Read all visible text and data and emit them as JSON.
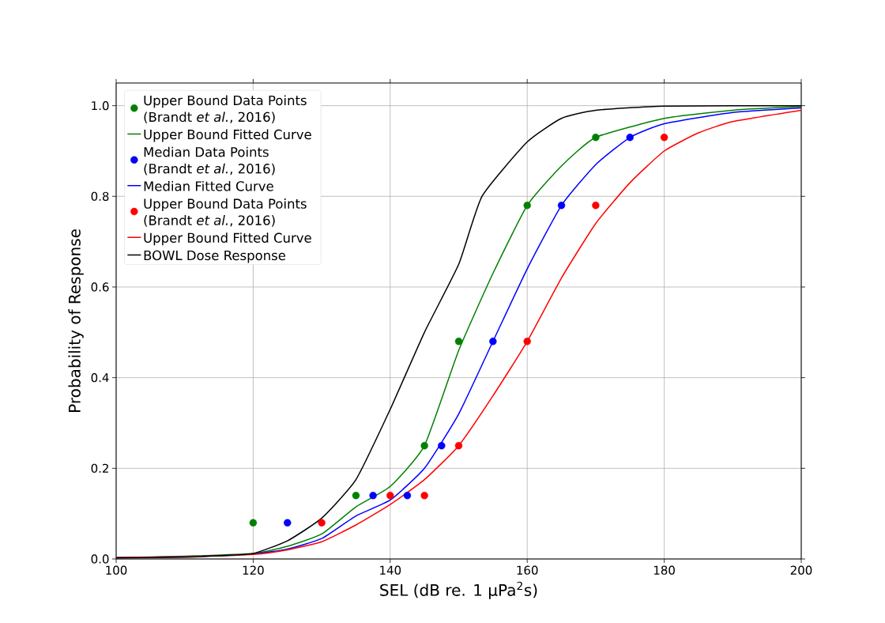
{
  "chart_data": {
    "type": "line",
    "xlabel": "SEL (dB re. 1 μPa$^{2}$s)",
    "ylabel": "Probability of Response",
    "xlim": [
      100,
      200
    ],
    "ylim": [
      0,
      1.05
    ],
    "xticks": [
      100,
      120,
      140,
      160,
      180,
      200
    ],
    "yticks": [
      {
        "value": 0,
        "label": "0.0"
      },
      {
        "value": 0.2,
        "label": "0.2"
      },
      {
        "value": 0.4,
        "label": "0.4"
      },
      {
        "value": 0.6,
        "label": "0.6"
      },
      {
        "value": 0.8,
        "label": "0.8"
      },
      {
        "value": 1.0,
        "label": "1.0"
      }
    ],
    "grid": true,
    "legend": "top left",
    "series": [
      {
        "type": "scatter",
        "marker": "circle",
        "name": "Upper Bound Data Points (Brandt *et al.*, 2016)",
        "color": "#008000",
        "x": [
          120,
          135,
          145,
          150,
          160,
          170
        ],
        "values": [
          0.08,
          0.14,
          0.25,
          0.48,
          0.78,
          0.93
        ]
      },
      {
        "type": "line",
        "name": "Upper Bound Fitted Curve",
        "color": "#008000",
        "x": [
          100,
          110,
          120,
          125,
          130,
          135,
          140,
          145,
          150,
          155,
          160,
          165,
          170,
          180,
          190,
          200
        ],
        "values": [
          0.003,
          0.006,
          0.012,
          0.028,
          0.055,
          0.115,
          0.16,
          0.25,
          0.46,
          0.63,
          0.78,
          0.867,
          0.93,
          0.972,
          0.99,
          0.998
        ]
      },
      {
        "type": "scatter",
        "marker": "circle",
        "name": "Median Data Points (Brandt *et al.*, 2016)",
        "color": "#0000ff",
        "x": [
          125,
          137.5,
          142.5,
          147.5,
          155,
          165,
          175
        ],
        "values": [
          0.08,
          0.14,
          0.14,
          0.25,
          0.48,
          0.78,
          0.93
        ]
      },
      {
        "type": "line",
        "name": "Median Fitted Curve",
        "color": "#0000ff",
        "x": [
          100,
          110,
          120,
          125,
          130,
          135,
          140,
          145,
          150,
          155,
          160,
          165,
          170,
          175,
          180,
          190,
          200
        ],
        "values": [
          0.003,
          0.005,
          0.011,
          0.022,
          0.045,
          0.095,
          0.13,
          0.2,
          0.32,
          0.48,
          0.64,
          0.78,
          0.87,
          0.93,
          0.96,
          0.985,
          0.995
        ]
      },
      {
        "type": "scatter",
        "marker": "circle",
        "name": "Upper Bound Data Points (Brandt *et al.*, 2016)",
        "color": "#ff0000",
        "x": [
          130,
          140,
          145,
          150,
          160,
          170,
          180
        ],
        "values": [
          0.08,
          0.14,
          0.14,
          0.25,
          0.48,
          0.78,
          0.93
        ]
      },
      {
        "type": "line",
        "name": "Upper Bound Fitted Curve",
        "color": "#ff0000",
        "x": [
          100,
          110,
          120,
          125,
          130,
          135,
          140,
          145,
          150,
          155,
          160,
          165,
          170,
          175,
          180,
          185,
          190,
          200
        ],
        "values": [
          0.003,
          0.005,
          0.01,
          0.02,
          0.038,
          0.075,
          0.12,
          0.175,
          0.25,
          0.36,
          0.48,
          0.62,
          0.74,
          0.83,
          0.9,
          0.94,
          0.965,
          0.99
        ]
      },
      {
        "type": "line",
        "name": "BOWL Dose Response",
        "color": "#000000",
        "x": [
          100,
          110,
          115,
          120,
          125,
          130,
          135,
          140,
          145,
          150,
          153.4,
          160,
          165,
          170,
          180,
          200
        ],
        "values": [
          0.002,
          0.004,
          0.007,
          0.012,
          0.04,
          0.09,
          0.175,
          0.33,
          0.5,
          0.65,
          0.8,
          0.92,
          0.972,
          0.99,
          0.999,
          1.0
        ]
      }
    ]
  }
}
